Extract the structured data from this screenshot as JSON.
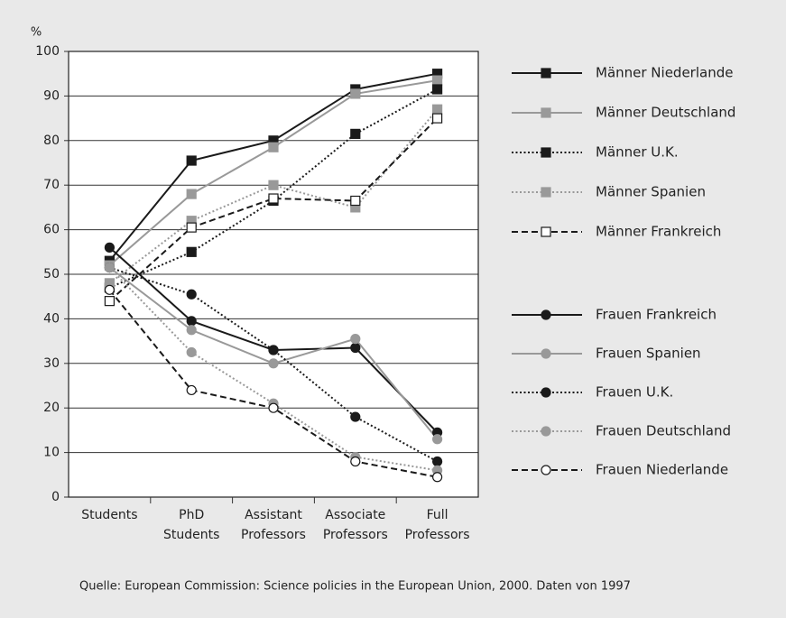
{
  "chart_data": {
    "type": "line",
    "y_label": "%",
    "source": "Quelle: European Commission: Science policies in the European Union, 2000. Daten von 1997",
    "categories": [
      "Students",
      "PhD Students",
      "Assistant Professors",
      "Associate Professors",
      "Full Professors"
    ],
    "ylim": [
      0,
      100
    ],
    "yticks": [
      0,
      10,
      20,
      30,
      40,
      50,
      60,
      70,
      80,
      90,
      100
    ],
    "grid": true,
    "legend": "right",
    "series": [
      {
        "name": "Männer Niederlande",
        "color": "#1a1a1a",
        "line_style": "solid",
        "marker": "square",
        "marker_fill": "#1a1a1a",
        "values": [
          53,
          75.5,
          80,
          91.5,
          95
        ]
      },
      {
        "name": "Männer Deutschland",
        "color": "#999999",
        "line_style": "solid",
        "marker": "square",
        "marker_fill": "#999999",
        "values": [
          52,
          68,
          78.5,
          90.5,
          93.5
        ]
      },
      {
        "name": "Männer U.K.",
        "color": "#1a1a1a",
        "line_style": "dotted",
        "marker": "square",
        "marker_fill": "#1a1a1a",
        "values": [
          47,
          55,
          66.5,
          81.5,
          91.5
        ]
      },
      {
        "name": "Männer Spanien",
        "color": "#999999",
        "line_style": "dotted",
        "marker": "square",
        "marker_fill": "#999999",
        "values": [
          48,
          62,
          70,
          65,
          87
        ]
      },
      {
        "name": "Männer Frankreich",
        "color": "#1a1a1a",
        "line_style": "dashed",
        "marker": "square",
        "marker_fill": "#ffffff",
        "values": [
          44,
          60.5,
          67,
          66.5,
          85
        ]
      },
      {
        "name": "Frauen Frankreich",
        "color": "#1a1a1a",
        "line_style": "solid",
        "marker": "circle",
        "marker_fill": "#1a1a1a",
        "values": [
          56,
          39.5,
          33,
          33.5,
          14.5
        ]
      },
      {
        "name": "Frauen Spanien",
        "color": "#999999",
        "line_style": "solid",
        "marker": "circle",
        "marker_fill": "#999999",
        "values": [
          51.5,
          37.5,
          30,
          35.5,
          13
        ]
      },
      {
        "name": "Frauen U.K.",
        "color": "#1a1a1a",
        "line_style": "dotted",
        "marker": "circle",
        "marker_fill": "#1a1a1a",
        "values": [
          51.5,
          45.5,
          33,
          18,
          8
        ]
      },
      {
        "name": "Frauen Deutschland",
        "color": "#999999",
        "line_style": "dotted",
        "marker": "circle",
        "marker_fill": "#999999",
        "values": [
          51.5,
          32.5,
          21,
          9,
          6
        ]
      },
      {
        "name": "Frauen Niederlande",
        "color": "#1a1a1a",
        "line_style": "dashed",
        "marker": "circle",
        "marker_fill": "#ffffff",
        "values": [
          46.5,
          24,
          20,
          8,
          4.5
        ]
      }
    ]
  }
}
